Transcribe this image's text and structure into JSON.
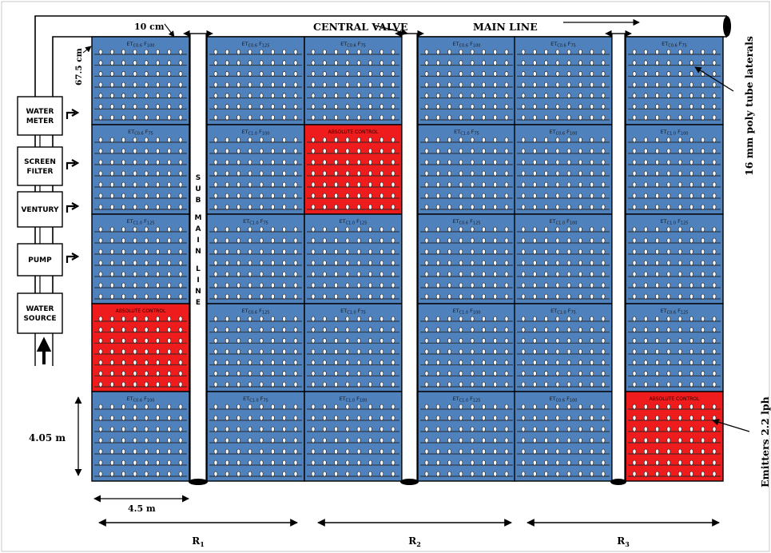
{
  "colors": {
    "plot": "#4f81bd",
    "control": "#ee1c1c",
    "lateral": "#2a2a2a",
    "outline": "#000000"
  },
  "labels": {
    "central_valve": "CENTRAL VALVE",
    "main_line": "MAIN LINE",
    "emitter_spacing": "10 cm",
    "lateral_spacing": "67.5 cm",
    "laterals": "16 mm poly tube laterals",
    "emitters": "Emitters 2.2 lph",
    "plot_height": "4.05 m",
    "plot_width": "4.5 m",
    "sub_main_line": "SUB MAIN LINE"
  },
  "equipment": [
    {
      "id": "water-meter",
      "lines": [
        "WATER",
        "METER"
      ]
    },
    {
      "id": "screen-filter",
      "lines": [
        "SCREEN",
        "FILTER"
      ]
    },
    {
      "id": "venturi",
      "lines": [
        "VENTURY"
      ]
    },
    {
      "id": "pump",
      "lines": [
        "PUMP"
      ]
    },
    {
      "id": "water-source",
      "lines": [
        "WATER",
        "SOURCE"
      ]
    }
  ],
  "replications": [
    {
      "base": "R",
      "sub": "1"
    },
    {
      "base": "R",
      "sub": "2"
    },
    {
      "base": "R",
      "sub": "3"
    }
  ],
  "plots": [
    [
      {
        "et": "0.6",
        "f": "100"
      },
      {
        "et": "0.6",
        "f": "125"
      },
      {
        "et": "0.6",
        "f": "75"
      },
      {
        "et": "0.6",
        "f": "100"
      },
      {
        "et": "0.6",
        "f": "75"
      },
      {
        "et": "0.6",
        "f": "75"
      }
    ],
    [
      {
        "et": "0.6",
        "f": "75"
      },
      {
        "et": "1.0",
        "f": "100"
      },
      {
        "control": "ABSOLUTE CONTROL"
      },
      {
        "et": "1.0",
        "f": "75"
      },
      {
        "et": "0.6",
        "f": "100"
      },
      {
        "et": "1.0",
        "f": "100"
      }
    ],
    [
      {
        "et": "1.0",
        "f": "125"
      },
      {
        "et": "1.0",
        "f": "75"
      },
      {
        "et": "1.0",
        "f": "125"
      },
      {
        "et": "0.6",
        "f": "125"
      },
      {
        "et": "1.0",
        "f": "100"
      },
      {
        "et": "1.0",
        "f": "125"
      }
    ],
    [
      {
        "control": "ABSOLUTE CONTROL"
      },
      {
        "et": "0.6",
        "f": "125"
      },
      {
        "et": "1.0",
        "f": "75"
      },
      {
        "et": "1.0",
        "f": "100"
      },
      {
        "et": "1.0",
        "f": "75"
      },
      {
        "et": "0.6",
        "f": "125"
      }
    ],
    [
      {
        "et": "0.6",
        "f": "100"
      },
      {
        "et": "1.0",
        "f": "75"
      },
      {
        "et": "1.0",
        "f": "100"
      },
      {
        "et": "1.0",
        "f": "125"
      },
      {
        "et": "0.6",
        "f": "100"
      },
      {
        "control": "ABSOLUTE CONTROL"
      }
    ]
  ]
}
